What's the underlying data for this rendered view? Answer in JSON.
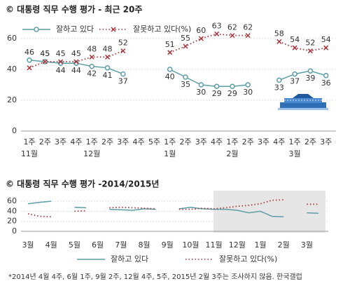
{
  "chart_data": [
    {
      "type": "line",
      "title": "© 대통령 직무 수행 평가 - 최근 20주",
      "categories": [
        "1주",
        "2주",
        "3주",
        "4주",
        "1주",
        "2주",
        "3주",
        "4주",
        "5주",
        "1주",
        "2주",
        "3주",
        "4주",
        "1주",
        "2주",
        "3주",
        "4주",
        "1주",
        "2주",
        "3주"
      ],
      "months": [
        "11월",
        null,
        null,
        null,
        "12월",
        null,
        null,
        null,
        null,
        "1월",
        null,
        null,
        null,
        "2월",
        null,
        null,
        null,
        "3월",
        null,
        null
      ],
      "series": [
        {
          "name": "잘하고 있다",
          "color": "#5b9ea6",
          "style": "solid",
          "values": [
            46,
            45,
            44,
            44,
            42,
            41,
            37,
            null,
            null,
            40,
            35,
            30,
            29,
            29,
            30,
            null,
            33,
            37,
            39,
            36
          ]
        },
        {
          "name": "잘못하고 있다(%)",
          "color": "#a8323a",
          "style": "dotted",
          "values": [
            41,
            45,
            45,
            45,
            48,
            48,
            52,
            null,
            null,
            51,
            55,
            60,
            63,
            62,
            62,
            null,
            58,
            54,
            52,
            54
          ],
          "value_labels": [
            null,
            "45",
            "45",
            "45",
            "48",
            "48",
            "52",
            null,
            null,
            "51",
            "55",
            "60",
            "63",
            "62",
            "62",
            null,
            "58",
            "54",
            "52",
            "54"
          ]
        }
      ],
      "markers": true,
      "data_labels": true,
      "ylim": [
        0,
        70
      ],
      "yticks": [
        0,
        20,
        40,
        60
      ],
      "grid": true
    },
    {
      "type": "line",
      "title": "© 대통령 직무 수행 평가 -2014/2015년",
      "categories": [
        "3월",
        null,
        "4월",
        null,
        "5월",
        null,
        "6월",
        null,
        "7월",
        null,
        "8월",
        null,
        "9월",
        null,
        "10월",
        null,
        "11월",
        null,
        "12월",
        null,
        "1월",
        null,
        "2월",
        null,
        "3월",
        null
      ],
      "series": [
        {
          "name": "잘하고 있다",
          "color": "#5b9ea6",
          "style": "solid",
          "values": [
            55,
            58,
            60,
            null,
            48,
            47,
            null,
            44,
            43,
            42,
            45,
            44,
            null,
            45,
            48,
            45,
            44,
            44,
            42,
            37,
            40,
            30,
            29,
            null,
            37,
            36
          ]
        },
        {
          "name": "잘못하고 있다(%)",
          "color": "#a8323a",
          "style": "dotted",
          "values": [
            35,
            30,
            29,
            null,
            40,
            41,
            null,
            47,
            48,
            47,
            46,
            45,
            null,
            44,
            44,
            46,
            45,
            47,
            50,
            52,
            55,
            62,
            63,
            null,
            54,
            54
          ]
        }
      ],
      "markers": false,
      "data_labels": false,
      "ylim": [
        0,
        70
      ],
      "yticks": [
        0,
        20,
        40,
        60
      ],
      "grid": true,
      "note": "*2014년 4월 4주, 6월 1주, 9월 2주, 12월 4주, 5주, 2015년 2월 3주는 조사하지 않음. 한국갤럽"
    }
  ]
}
